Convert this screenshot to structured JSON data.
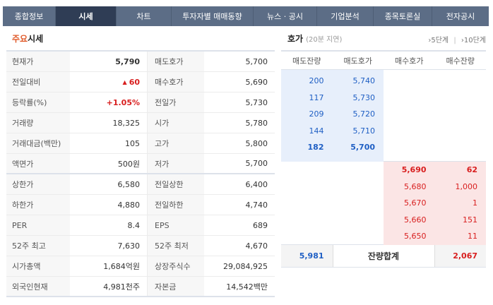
{
  "tabs": [
    "종합정보",
    "시세",
    "차트",
    "투자자별 매매동향",
    "뉴스 · 공시",
    "기업분석",
    "종목토론실",
    "전자공시"
  ],
  "active_tab": "시세",
  "left_section": {
    "title_accent": "주요",
    "title_rest": "시세"
  },
  "right_section": {
    "title": "호가",
    "note": "(20분 지연)",
    "step5": "5단계",
    "step10": "10단계"
  },
  "quote_rows": [
    {
      "k1": "현재가",
      "v1": "5,790",
      "k2": "매도호가",
      "v2": "5,700"
    },
    {
      "k1": "전일대비",
      "v1": "60",
      "k2": "매수호가",
      "v2": "5,690"
    },
    {
      "k1": "등락률(%)",
      "v1": "+1.05%",
      "k2": "전일가",
      "v2": "5,730"
    },
    {
      "k1": "거래량",
      "v1": "18,325",
      "k2": "시가",
      "v2": "5,780"
    },
    {
      "k1": "거래대금(백만)",
      "v1": "105",
      "k2": "고가",
      "v2": "5,800"
    },
    {
      "k1": "액면가",
      "v1": "500원",
      "k2": "저가",
      "v2": "5,700"
    },
    {
      "k1": "상한가",
      "v1": "6,580",
      "k2": "전일상한",
      "v2": "6,400"
    },
    {
      "k1": "하한가",
      "v1": "4,880",
      "k2": "전일하한",
      "v2": "4,740"
    },
    {
      "k1": "PER",
      "v1": "8.4",
      "k2": "EPS",
      "v2": "689"
    },
    {
      "k1": "52주 최고",
      "v1": "7,630",
      "k2": "52주 최저",
      "v2": "4,670"
    },
    {
      "k1": "시가총액",
      "v1": "1,684억원",
      "k2": "상장주식수",
      "v2": "29,084,925"
    },
    {
      "k1": "외국인현재",
      "v1": "4,981천주",
      "k2": "자본금",
      "v2": "14,542백만"
    }
  ],
  "hoga_headers": [
    "매도잔량",
    "매도호가",
    "매수호가",
    "매수잔량"
  ],
  "asks": [
    {
      "qty": "200",
      "price": "5,740"
    },
    {
      "qty": "117",
      "price": "5,730"
    },
    {
      "qty": "209",
      "price": "5,720"
    },
    {
      "qty": "144",
      "price": "5,710"
    },
    {
      "qty": "182",
      "price": "5,700"
    }
  ],
  "bids": [
    {
      "price": "5,690",
      "qty": "62"
    },
    {
      "price": "5,680",
      "qty": "1,000"
    },
    {
      "price": "5,670",
      "qty": "1"
    },
    {
      "price": "5,660",
      "qty": "151"
    },
    {
      "price": "5,650",
      "qty": "11"
    }
  ],
  "totals": {
    "ask_total": "5,981",
    "label": "잔량합계",
    "bid_total": "2,067"
  },
  "colors": {
    "up": "#d81e1e",
    "ask": "#1f5fc4",
    "tab_bg": "#5c6d86",
    "tab_active": "#2f3d55"
  }
}
